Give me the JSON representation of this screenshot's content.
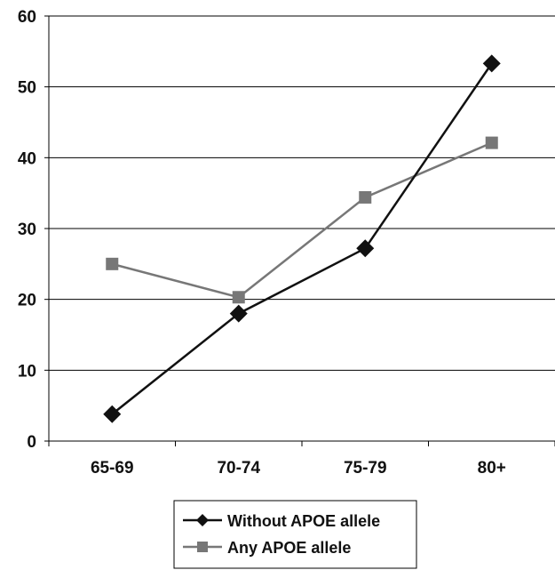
{
  "chart_data": {
    "type": "line",
    "categories": [
      "65-69",
      "70-74",
      "75-79",
      "80+"
    ],
    "ylim": [
      0,
      60
    ],
    "yticks": [
      0,
      10,
      20,
      30,
      40,
      50,
      60
    ],
    "grid": true,
    "legend_position": "bottom",
    "series": [
      {
        "name": "Without APOE allele",
        "values": [
          3.8,
          18.0,
          27.2,
          53.3
        ],
        "color": "#111111",
        "marker": "diamond"
      },
      {
        "name": "Any APOE allele",
        "values": [
          25.0,
          20.3,
          34.4,
          42.1
        ],
        "color": "#777777",
        "marker": "square"
      }
    ]
  }
}
